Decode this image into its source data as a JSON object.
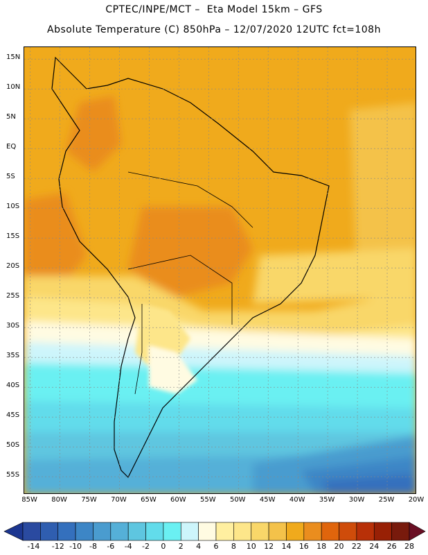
{
  "header": {
    "line1": "CPTEC/INPE/MCT –  Eta Model 15km – GFS",
    "line2": "Absolute Temperature (C) 850hPa – 12/07/2020 12UTC fct=108h"
  },
  "map": {
    "lat_labels": [
      "15N",
      "10N",
      "5N",
      "EQ",
      "5S",
      "10S",
      "15S",
      "20S",
      "25S",
      "30S",
      "35S",
      "40S",
      "45S",
      "50S",
      "55S"
    ],
    "lat_values": [
      15,
      10,
      5,
      0,
      -5,
      -10,
      -15,
      -20,
      -25,
      -30,
      -35,
      -40,
      -45,
      -50,
      -55
    ],
    "lon_labels": [
      "85W",
      "80W",
      "75W",
      "70W",
      "65W",
      "60W",
      "55W",
      "50W",
      "45W",
      "40W",
      "35W",
      "30W",
      "25W",
      "20W"
    ],
    "lon_values": [
      -85,
      -80,
      -75,
      -70,
      -65,
      -60,
      -55,
      -50,
      -45,
      -40,
      -35,
      -30,
      -25,
      -20
    ],
    "lat_range": [
      -58,
      17
    ],
    "lon_range": [
      -86,
      -20
    ]
  },
  "colorbar": {
    "labels": [
      "-14",
      "-12",
      "-10",
      "-8",
      "-6",
      "-4",
      "-2",
      "0",
      "2",
      "4",
      "6",
      "8",
      "10",
      "12",
      "14",
      "16",
      "18",
      "20",
      "22",
      "24",
      "26",
      "28"
    ],
    "colors": [
      "#2a4aa0",
      "#2f5eb0",
      "#3470bd",
      "#3d86c6",
      "#4a9ccf",
      "#55b0d8",
      "#5ec6e0",
      "#62dceb",
      "#6af0f2",
      "#cdf5fb",
      "#fffbe2",
      "#ffefa0",
      "#fde68a",
      "#f9d769",
      "#f4c24a",
      "#f0aa1c",
      "#ea8d1e",
      "#e0650c",
      "#cf4c0a",
      "#b83008",
      "#982005",
      "#781a0c"
    ]
  }
}
